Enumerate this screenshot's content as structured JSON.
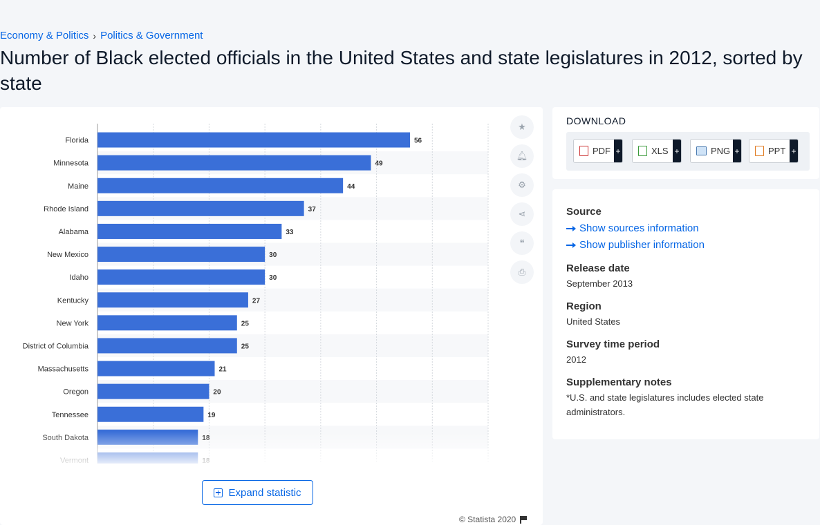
{
  "breadcrumb": {
    "item1": "Economy & Politics",
    "sep": "›",
    "item2": "Politics & Government"
  },
  "title": "Number of Black elected officials in the United States and state legislatures in 2012, sorted by state",
  "chart_data": {
    "type": "bar",
    "orientation": "horizontal",
    "categories": [
      "Florida",
      "Minnesota",
      "Maine",
      "Rhode Island",
      "Alabama",
      "New Mexico",
      "Idaho",
      "Kentucky",
      "New York",
      "District of Columbia",
      "Massachusetts",
      "Oregon",
      "Tennessee",
      "South Dakota",
      "Vermont"
    ],
    "values": [
      56,
      49,
      44,
      37,
      33,
      30,
      30,
      27,
      25,
      25,
      21,
      20,
      19,
      18,
      18
    ],
    "xlim": [
      0,
      70
    ],
    "grid": true,
    "bar_color": "#3a6fd8"
  },
  "tools": [
    "star-icon",
    "bell-icon",
    "gear-icon",
    "share-icon",
    "quote-icon",
    "print-icon"
  ],
  "expand_label": "Expand statistic",
  "copyright": "© Statista 2020",
  "download": {
    "title": "DOWNLOAD",
    "buttons": [
      {
        "label": "PDF",
        "plus": "+"
      },
      {
        "label": "XLS",
        "plus": "+"
      },
      {
        "label": "PNG",
        "plus": "+"
      },
      {
        "label": "PPT",
        "plus": "+"
      }
    ]
  },
  "info": {
    "source_label": "Source",
    "sources_link": "Show sources information",
    "publisher_link": "Show publisher information",
    "release_label": "Release date",
    "release_value": "September 2013",
    "region_label": "Region",
    "region_value": "United States",
    "survey_label": "Survey time period",
    "survey_value": "2012",
    "notes_label": "Supplementary notes",
    "notes_value": "*U.S. and state legislatures includes elected state administrators."
  }
}
